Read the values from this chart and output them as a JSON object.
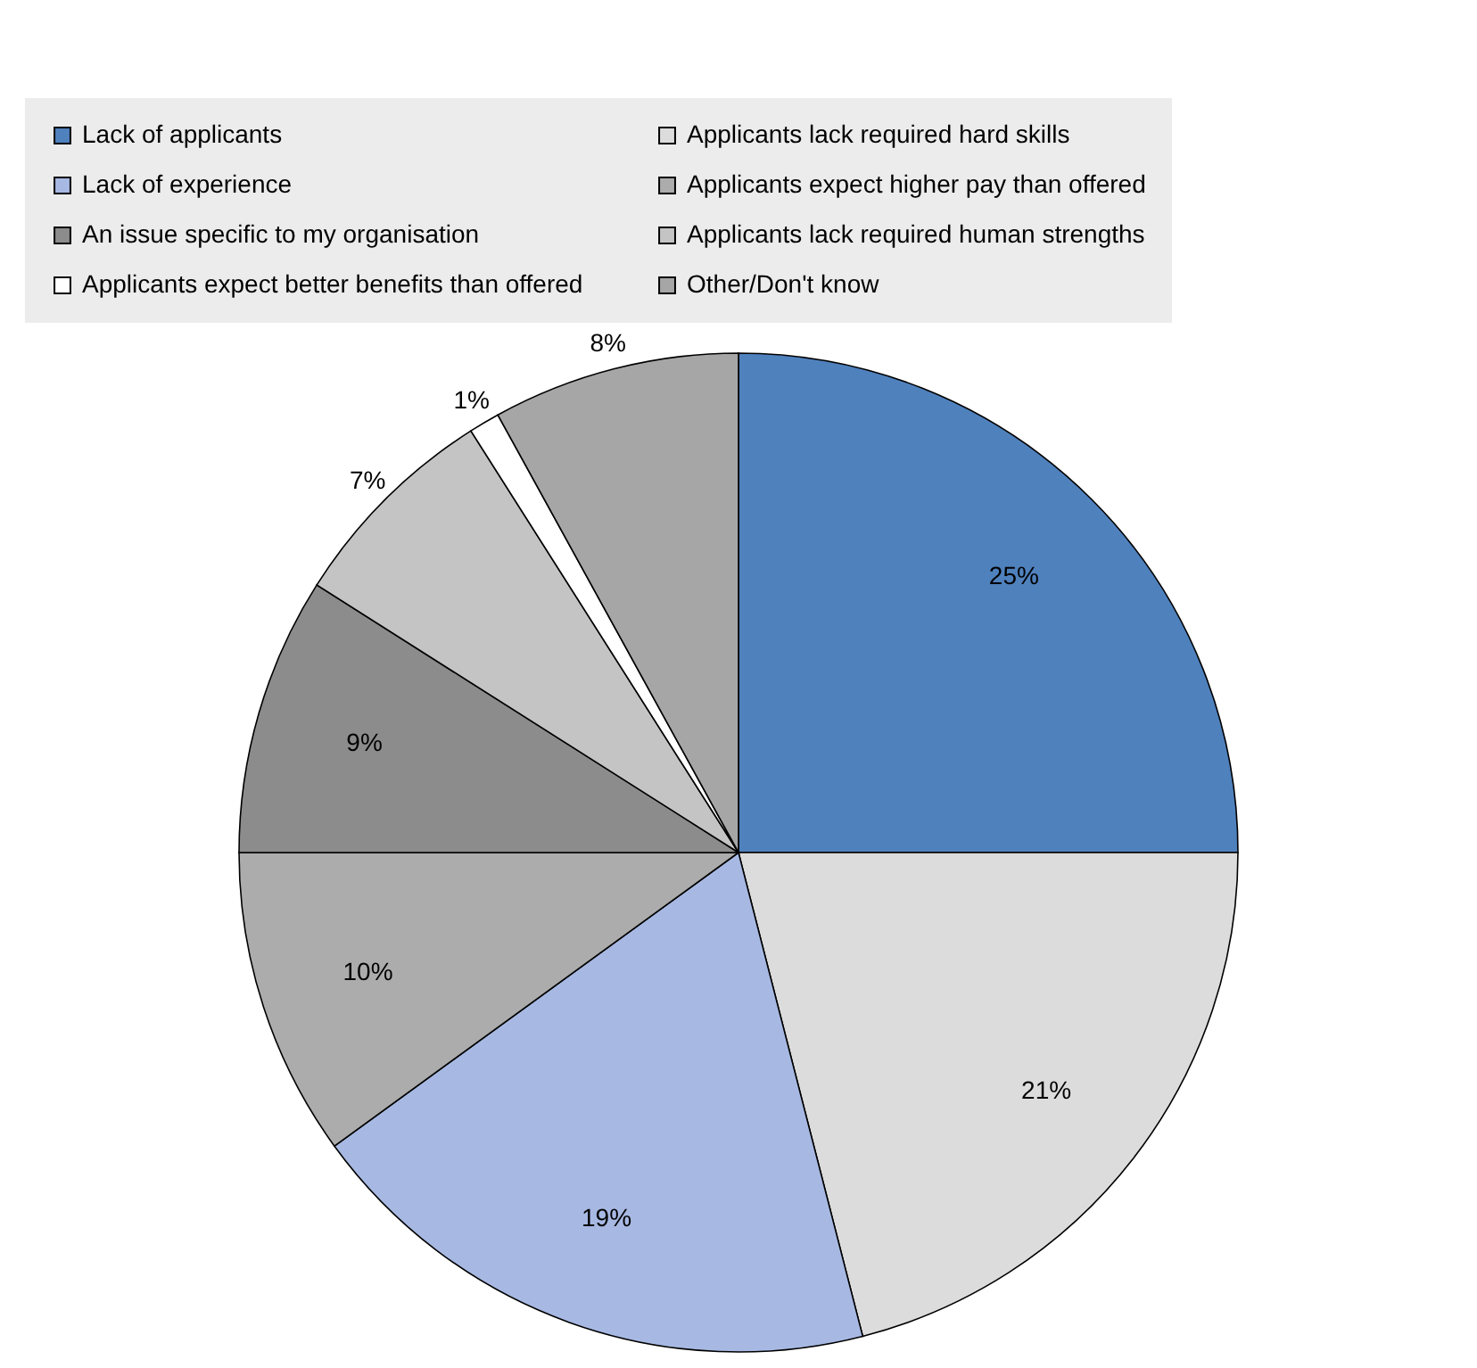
{
  "chart_data": {
    "type": "pie",
    "categories": [
      "Lack of applicants",
      "Applicants lack required hard skills",
      "Lack of experience",
      "Applicants expect higher pay than offered",
      "An issue specific to my organisation",
      "Applicants lack required human strengths",
      "Applicants expect better benefits than offered",
      "Other/Don't know"
    ],
    "values": [
      25,
      21,
      19,
      10,
      9,
      7,
      1,
      8
    ],
    "colors": [
      "#4f81bd",
      "#dcdcdc",
      "#a7b9e3",
      "#acacac",
      "#8c8c8c",
      "#c4c4c4",
      "#ffffff",
      "#a6a6a6"
    ],
    "value_labels": [
      "25%",
      "21%",
      "19%",
      "10%",
      "9%",
      "7%",
      "1%",
      "8%"
    ],
    "legend": "top"
  }
}
